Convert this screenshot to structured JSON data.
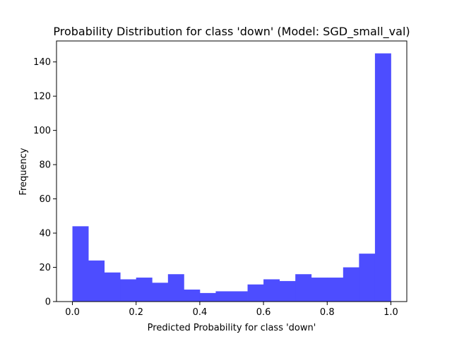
{
  "chart_data": {
    "type": "bar",
    "title": "Probability Distribution for class 'down' (Model: SGD_small_val)",
    "xlabel": "Predicted Probability for class 'down'",
    "ylabel": "Frequency",
    "xlim": [
      -0.05,
      1.05
    ],
    "ylim": [
      0,
      152.25
    ],
    "xticks": [
      "0.0",
      "0.2",
      "0.4",
      "0.6",
      "0.8",
      "1.0"
    ],
    "yticks": [
      "0",
      "20",
      "40",
      "60",
      "80",
      "100",
      "120",
      "140"
    ],
    "bin_edges": [
      0.0,
      0.05,
      0.1,
      0.15,
      0.2,
      0.25,
      0.3,
      0.35,
      0.4,
      0.45,
      0.5,
      0.55,
      0.6,
      0.65,
      0.7,
      0.75,
      0.8,
      0.85,
      0.9,
      0.95,
      1.0
    ],
    "values": [
      44,
      24,
      17,
      13,
      14,
      11,
      16,
      7,
      5,
      6,
      6,
      10,
      13,
      12,
      16,
      14,
      14,
      20,
      28,
      145
    ],
    "bar_color": "#4d4dff",
    "grid": false,
    "legend": "none"
  }
}
